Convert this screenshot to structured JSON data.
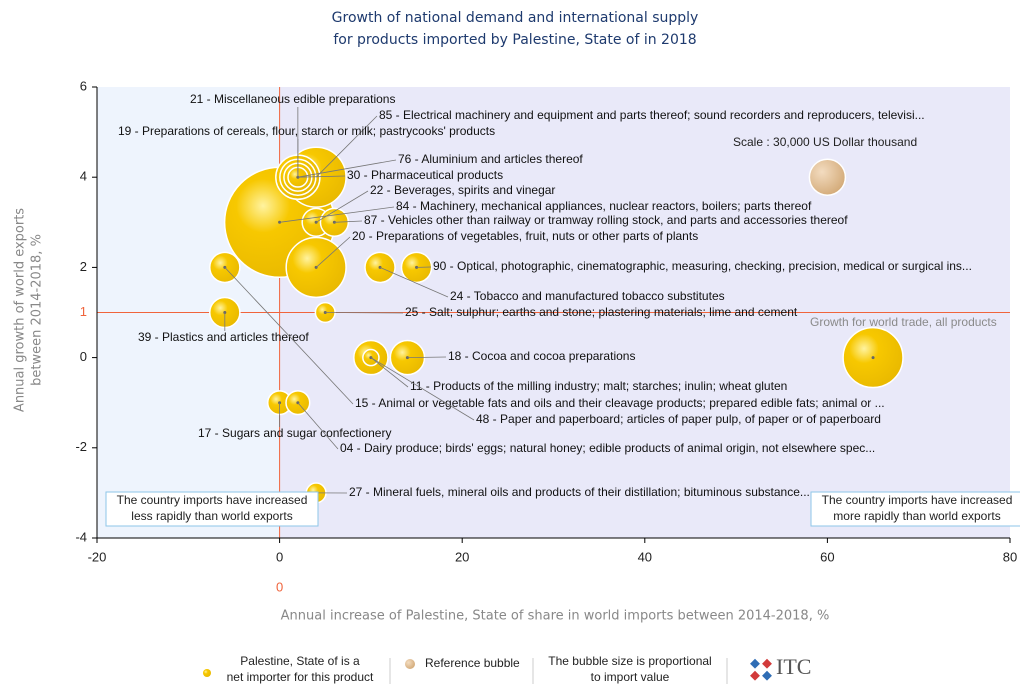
{
  "chart_data": {
    "type": "bubble",
    "title_lines": [
      "Growth of national demand and international supply",
      "for products imported by Palestine, State of in 2018"
    ],
    "xlabel": "Annual increase of Palestine, State of share in world imports between 2014-2018, %",
    "ylabel_lines": [
      "Annual growth of world exports",
      "between 2014-2018, %"
    ],
    "xlim": [
      -20,
      80
    ],
    "xticks": [
      -20,
      0,
      20,
      40,
      60,
      80
    ],
    "ylim": [
      -4,
      6
    ],
    "yticks": [
      -4,
      -2,
      0,
      2,
      4,
      6
    ],
    "vline": 0,
    "hline": 1,
    "line_color": "#f0643c",
    "color": "#f7c800",
    "points": [
      {
        "label": "21 - Miscellaneous edible preparations",
        "x": 2,
        "y": 4,
        "size": 30000
      },
      {
        "label": "85 - Electrical machinery and equipment and parts thereof; sound recorders and reproducers, televisi...",
        "x": 4,
        "y": 4,
        "size": 83000
      },
      {
        "label": "19 - Preparations of cereals, flour, starch or milk; pastrycooks' products",
        "x": 2,
        "y": 4,
        "size": 45000
      },
      {
        "label": "76 - Aluminium and articles thereof",
        "x": 2,
        "y": 4,
        "size": 18000
      },
      {
        "label": "30 - Pharmaceutical products",
        "x": 2,
        "y": 4,
        "size": 9000
      },
      {
        "label": "22 - Beverages, spirits and vinegar",
        "x": 4,
        "y": 3,
        "size": 18000
      },
      {
        "label": "84 - Machinery, mechanical appliances, nuclear reactors, boilers; parts thereof",
        "x": 0,
        "y": 3,
        "size": 280000
      },
      {
        "label": "87 - Vehicles other than railway or tramway rolling stock, and parts and accessories thereof",
        "x": 6,
        "y": 3,
        "size": 18000
      },
      {
        "label": "20 - Preparations of vegetables, fruit, nuts or other parts of plants",
        "x": 4,
        "y": 2,
        "size": 83000
      },
      {
        "label": "90 - Optical, photographic, cinematographic, measuring, checking, precision, medical or surgical ins...",
        "x": 15,
        "y": 2,
        "size": 21000
      },
      {
        "label": "24 - Tobacco and manufactured tobacco substitutes",
        "x": 11,
        "y": 2,
        "size": 21000
      },
      {
        "label": "25 - Salt; sulphur; earths and stone; plastering materials; lime and cement",
        "x": 5,
        "y": 1,
        "size": 9000
      },
      {
        "label": "39 - Plastics and articles thereof",
        "x": -6,
        "y": 1,
        "size": 21000
      },
      {
        "label": "18 - Cocoa and cocoa preparations",
        "x": 14,
        "y": 0,
        "size": 27000
      },
      {
        "label": "11 - Products of the milling industry; malt; starches; inulin; wheat gluten",
        "x": 10,
        "y": 0,
        "size": 27000
      },
      {
        "label": "15 - Animal or vegetable fats and oils and their cleavage products; prepared edible fats; animal or ...",
        "x": -6,
        "y": 2,
        "size": 21000
      },
      {
        "label": "48 - Paper and paperboard; articles of paper pulp, of paper or of paperboard",
        "x": 10,
        "y": 0,
        "size": 6000
      },
      {
        "label": "17 - Sugars and sugar confectionery",
        "x": 0,
        "y": -1,
        "size": 13000
      },
      {
        "label": "04 - Dairy produce; birds' eggs; natural honey; edible products of animal origin, not elsewhere spec...",
        "x": 2,
        "y": -1,
        "size": 13000
      },
      {
        "label": "27 - Mineral fuels, mineral oils and products of their distillation; bituminous substance...",
        "x": 4,
        "y": -3,
        "size": 9000
      }
    ],
    "world": {
      "label": "Growth for world trade, all products",
      "x": 65,
      "y": 0,
      "size": 83000
    },
    "reference_bubble": {
      "x": 60,
      "y": 4,
      "size": 30000,
      "color": "#dcb88a"
    },
    "scale_text": "Scale : 30,000 US Dollar thousand",
    "box_left_lines": [
      "The country imports have increased",
      "less rapidly than world exports"
    ],
    "box_right_lines": [
      "The country imports have increased",
      "more rapidly than world exports"
    ],
    "legend": {
      "importer_lines": [
        "Palestine, State of is a",
        "net importer for this product"
      ],
      "reference": "Reference bubble",
      "size_note_lines": [
        "The bubble size is proportional",
        "to import value"
      ],
      "logo": "ITC"
    }
  }
}
